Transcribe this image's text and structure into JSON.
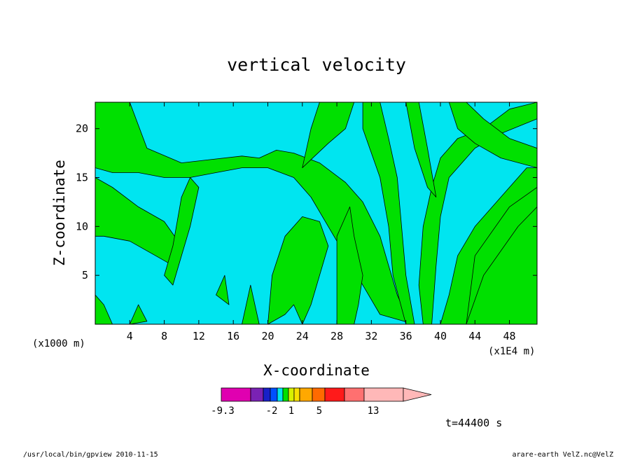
{
  "chart_data": {
    "type": "heatmap",
    "title": "vertical velocity",
    "xlabel": "X-coordinate",
    "ylabel": "Z-coordinate",
    "x_unit_left": "(x1000 m)",
    "x_unit_right": "(x1E4 m)",
    "x_ticks": [
      4,
      8,
      12,
      16,
      20,
      24,
      28,
      32,
      36,
      40,
      44,
      48
    ],
    "y_ticks": [
      5,
      10,
      15,
      20
    ],
    "xlim": [
      0,
      51.2
    ],
    "ylim": [
      0,
      22.7
    ],
    "time_label": "t=44400 s",
    "colors": {
      "cyan": "#00e5f0",
      "green": "#00e000",
      "contour": "#000000"
    },
    "colorbar": {
      "colors": [
        "#e000b0",
        "#7a22b4",
        "#1820c8",
        "#0050ff",
        "#00e5f0",
        "#00e000",
        "#d8f000",
        "#f8e000",
        "#ffa800",
        "#ff6a00",
        "#ff1a1a",
        "#ff7070",
        "#ffb8b8"
      ],
      "tick_labels": [
        "-9.3",
        "-2",
        "1",
        "5",
        "13"
      ]
    }
  },
  "footer": {
    "left": "/usr/local/bin/gpview  2010-11-15",
    "right": "arare-earth_VelZ.nc@VelZ"
  }
}
